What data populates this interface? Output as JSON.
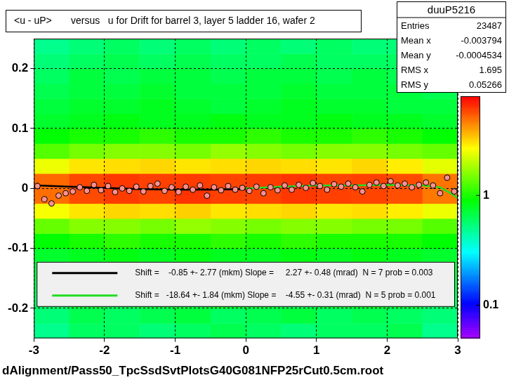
{
  "chart_data": {
    "type": "heatmap",
    "title": "<u - uP>       versus   u for Drift for barrel 3, layer 5 ladder 16, wafer 2",
    "caption": "dAlignment/Pass50_TpcSsdSvtPlotsG40G081NFP25rCut0.5cm.root",
    "xlim": [
      -3,
      3
    ],
    "xticks": [
      -3,
      -2,
      -1,
      0,
      1,
      2,
      3
    ],
    "ylim": [
      -0.25,
      0.25
    ],
    "yticks": [
      -0.2,
      -0.1,
      0,
      0.1,
      0.2
    ],
    "grid": true,
    "legend": "bottom",
    "heatmap": {
      "xbins": [
        -3,
        -2.5,
        -2,
        -1.5,
        -1,
        -0.5,
        0,
        0.5,
        1,
        1.5,
        2,
        2.5,
        3
      ],
      "ybins": [
        -0.25,
        -0.225,
        -0.2,
        -0.175,
        -0.15,
        -0.125,
        -0.1,
        -0.075,
        -0.05,
        -0.025,
        0,
        0.025,
        0.05,
        0.075,
        0.1,
        0.125,
        0.15,
        0.175,
        0.2,
        0.225,
        0.25
      ],
      "cells": [
        [
          0.5,
          0.6,
          0.6,
          0.55,
          0.6,
          0.65,
          0.6,
          0.55,
          0.6,
          0.6,
          0.65,
          0.5
        ],
        [
          0.55,
          0.65,
          0.6,
          0.65,
          0.7,
          0.6,
          0.65,
          0.7,
          0.6,
          0.65,
          0.6,
          0.55
        ],
        [
          0.6,
          0.7,
          0.65,
          0.7,
          0.7,
          0.75,
          0.7,
          0.65,
          0.7,
          0.75,
          0.7,
          0.6
        ],
        [
          0.65,
          0.7,
          0.75,
          0.7,
          0.75,
          0.7,
          0.75,
          0.7,
          0.75,
          0.7,
          0.7,
          0.65
        ],
        [
          0.7,
          0.75,
          0.8,
          0.75,
          0.8,
          0.75,
          0.7,
          0.8,
          0.75,
          0.8,
          0.75,
          0.7
        ],
        [
          0.75,
          0.8,
          0.85,
          0.8,
          0.85,
          0.8,
          0.8,
          0.85,
          0.8,
          0.85,
          0.8,
          0.75
        ],
        [
          0.9,
          1.0,
          1.1,
          1.0,
          1.0,
          1.1,
          1.0,
          1.1,
          1.0,
          1.0,
          1.0,
          0.9
        ],
        [
          1.4,
          1.6,
          1.6,
          1.5,
          1.7,
          1.6,
          1.5,
          1.6,
          1.6,
          1.5,
          1.5,
          1.3
        ],
        [
          2.6,
          3.0,
          3.2,
          3.1,
          3.3,
          3.0,
          3.1,
          3.2,
          3.0,
          3.1,
          2.9,
          2.5
        ],
        [
          5.0,
          5.8,
          6.2,
          6.0,
          6.4,
          6.1,
          6.0,
          6.3,
          6.1,
          6.0,
          5.7,
          4.8
        ],
        [
          5.1,
          5.9,
          6.3,
          6.1,
          6.2,
          6.0,
          6.2,
          6.4,
          6.0,
          6.1,
          5.8,
          4.9
        ],
        [
          2.5,
          3.0,
          3.1,
          3.2,
          3.0,
          3.1,
          3.2,
          3.1,
          3.0,
          3.2,
          2.9,
          2.4
        ],
        [
          1.3,
          1.5,
          1.6,
          1.6,
          1.5,
          1.7,
          1.6,
          1.5,
          1.6,
          1.6,
          1.5,
          1.4
        ],
        [
          0.9,
          1.0,
          1.0,
          1.1,
          1.0,
          1.0,
          1.1,
          1.0,
          1.0,
          1.1,
          1.0,
          0.9
        ],
        [
          0.75,
          0.8,
          0.85,
          0.8,
          0.8,
          0.85,
          0.8,
          0.8,
          0.85,
          0.8,
          0.8,
          0.75
        ],
        [
          0.7,
          0.75,
          0.75,
          0.8,
          0.75,
          0.7,
          0.75,
          0.8,
          0.75,
          0.75,
          0.7,
          0.7
        ],
        [
          0.65,
          0.7,
          0.7,
          0.75,
          0.7,
          0.7,
          0.7,
          0.75,
          0.7,
          0.7,
          0.7,
          0.65
        ],
        [
          0.6,
          0.7,
          0.65,
          0.7,
          0.7,
          0.65,
          0.7,
          0.7,
          0.65,
          0.7,
          0.65,
          0.6
        ],
        [
          0.55,
          0.6,
          0.65,
          0.6,
          0.65,
          0.6,
          0.6,
          0.65,
          0.6,
          0.6,
          0.6,
          0.55
        ],
        [
          0.5,
          0.55,
          0.6,
          0.55,
          0.6,
          0.55,
          0.6,
          0.55,
          0.6,
          0.55,
          0.55,
          0.5
        ]
      ],
      "zlim": [
        0.05,
        8
      ],
      "zticks": [
        0.1,
        1
      ]
    },
    "profile": {
      "x": [
        -2.95,
        -2.85,
        -2.75,
        -2.65,
        -2.55,
        -2.45,
        -2.35,
        -2.25,
        -2.15,
        -2.05,
        -1.95,
        -1.85,
        -1.75,
        -1.65,
        -1.55,
        -1.45,
        -1.35,
        -1.25,
        -1.15,
        -1.05,
        -0.95,
        -0.85,
        -0.75,
        -0.65,
        -0.55,
        -0.45,
        -0.35,
        -0.25,
        -0.15,
        -0.05,
        0.05,
        0.15,
        0.25,
        0.35,
        0.45,
        0.55,
        0.65,
        0.75,
        0.85,
        0.95,
        1.05,
        1.15,
        1.25,
        1.35,
        1.45,
        1.55,
        1.65,
        1.75,
        1.85,
        1.95,
        2.05,
        2.15,
        2.25,
        2.35,
        2.45,
        2.55,
        2.65,
        2.75,
        2.85,
        2.95
      ],
      "values": [
        0.004,
        -0.018,
        -0.025,
        -0.012,
        -0.008,
        -0.005,
        0.002,
        -0.004,
        0.006,
        -0.003,
        0.004,
        -0.006,
        0.0,
        -0.004,
        0.003,
        -0.005,
        0.004,
        0.008,
        -0.004,
        0.002,
        -0.006,
        0.003,
        -0.002,
        0.005,
        -0.012,
        0.002,
        -0.003,
        0.004,
        -0.002,
        0.001,
        -0.004,
        0.003,
        -0.008,
        0.002,
        -0.003,
        0.005,
        -0.002,
        0.006,
        0.001,
        0.009,
        0.004,
        -0.002,
        0.007,
        0.003,
        0.008,
        0.002,
        -0.005,
        0.006,
        0.01,
        0.004,
        0.012,
        0.005,
        0.008,
        0.002,
        0.006,
        0.01,
        0.005,
        -0.008,
        0.018,
        -0.005
      ],
      "errors": [
        0.006,
        0.005,
        0.005,
        0.004,
        0.004,
        0.004,
        0.003,
        0.003,
        0.003,
        0.003,
        0.003,
        0.003,
        0.003,
        0.003,
        0.003,
        0.003,
        0.003,
        0.003,
        0.003,
        0.003,
        0.003,
        0.003,
        0.003,
        0.003,
        0.003,
        0.003,
        0.003,
        0.003,
        0.003,
        0.003,
        0.003,
        0.003,
        0.003,
        0.003,
        0.003,
        0.003,
        0.003,
        0.003,
        0.003,
        0.003,
        0.003,
        0.003,
        0.003,
        0.003,
        0.003,
        0.003,
        0.003,
        0.003,
        0.003,
        0.003,
        0.003,
        0.003,
        0.003,
        0.003,
        0.004,
        0.004,
        0.004,
        0.005,
        0.005,
        0.006
      ],
      "color": "#ff9090",
      "marker": "circle"
    },
    "series": [
      {
        "name": "Shift =    -0.85 +- 2.77 (mkm) Slope =     2.27 +- 0.48 (mrad)  N = 7 prob = 0.003",
        "type": "line",
        "color": "#000000",
        "line_style": "solid",
        "x": [
          -2.95,
          -2.5,
          -2,
          -1.5,
          -1,
          -0.5,
          0
        ],
        "values": [
          0.005,
          0.003,
          0.001,
          -0.001,
          -0.002,
          -0.002,
          -0.001
        ]
      },
      {
        "name": "Shift =   -18.64 +- 1.84 (mkm) Slope =    -4.55 +- 0.31 (mrad)  N = 5 prob = 0.001",
        "type": "line",
        "color": "#22dd22",
        "line_style": "solid",
        "x": [
          0,
          0.5,
          1,
          1.5,
          2,
          2.5,
          2.75,
          2.9,
          3
        ],
        "values": [
          0.0,
          0.003,
          0.005,
          0.005,
          0.006,
          0.005,
          0.002,
          -0.008,
          -0.016
        ]
      }
    ],
    "stats": {
      "title": "duuP5216",
      "entries": [
        {
          "label": "Entries",
          "value": 23487
        },
        {
          "label": "Mean x",
          "value": -0.003794
        },
        {
          "label": "Mean y",
          "value": -0.0004534
        },
        {
          "label": "RMS x",
          "value": 1.695
        },
        {
          "label": "RMS y",
          "value": 0.05266
        }
      ]
    }
  }
}
